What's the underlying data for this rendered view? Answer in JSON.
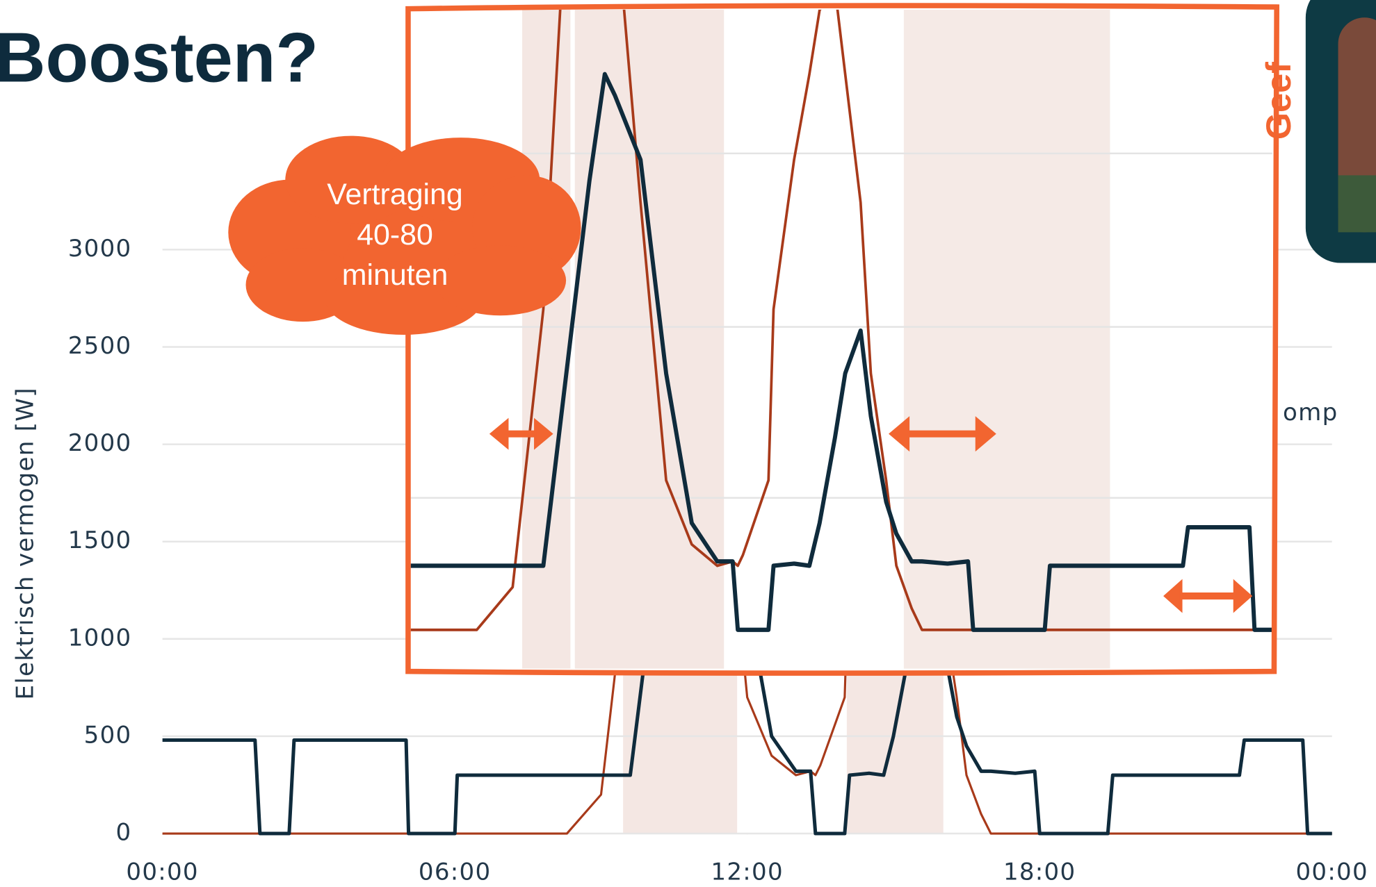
{
  "chart_data": {
    "type": "line",
    "title": "Boosten?",
    "y_label": "Elektrisch vermogen [W]",
    "annotation": [
      "Vertraging",
      "40-80",
      "minuten"
    ],
    "side_labels": [
      "Geef",
      "omp"
    ],
    "x": [
      0,
      1.9,
      2,
      2.6,
      2.7,
      5,
      5.05,
      6,
      6.05,
      8.3,
      9,
      9.6,
      10,
      10.2,
      10.5,
      10.8,
      11,
      11.5,
      12,
      12.5,
      13,
      13.3,
      13.4,
      13.5,
      14,
      14.1,
      14.5,
      14.8,
      15,
      15.3,
      15.5,
      15.8,
      16,
      16.3,
      16.5,
      16.8,
      17,
      17.5,
      17.9,
      18,
      19.4,
      19.5,
      22.1,
      22.2,
      23.4,
      23.5,
      24
    ],
    "series": [
      {
        "color": "#0f2b3c",
        "values": [
          480,
          480,
          0,
          0,
          480,
          480,
          0,
          0,
          300,
          300,
          300,
          300,
          1100,
          1500,
          2100,
          2600,
          2500,
          2200,
          1200,
          500,
          320,
          320,
          0,
          0,
          0,
          300,
          310,
          300,
          500,
          900,
          1200,
          1400,
          1000,
          600,
          450,
          320,
          320,
          310,
          320,
          0,
          0,
          300,
          300,
          480,
          480,
          0,
          0
        ]
      },
      {
        "color": "#a83a1a",
        "values": [
          0,
          0,
          0,
          0,
          0,
          0,
          0,
          0,
          0,
          0,
          200,
          1500,
          3200,
          3300,
          3400,
          3400,
          3400,
          2000,
          700,
          400,
          300,
          320,
          300,
          350,
          700,
          1500,
          2200,
          2600,
          2900,
          3000,
          2600,
          2000,
          1200,
          700,
          300,
          100,
          0,
          0,
          0,
          0,
          0,
          0,
          0,
          0,
          0,
          0,
          0
        ]
      }
    ],
    "xlim": [
      0,
      24
    ],
    "xticks": [
      {
        "value": 0,
        "label": "00:00"
      },
      {
        "value": 6,
        "label": "06:00"
      },
      {
        "value": 12,
        "label": "12:00"
      },
      {
        "value": 18,
        "label": "18:00"
      },
      {
        "value": 24,
        "label": "00:00"
      }
    ],
    "ylim": [
      0,
      3400
    ],
    "yticks": [
      0,
      500,
      1000,
      1500,
      2000,
      2500,
      3000
    ],
    "grid": true
  }
}
